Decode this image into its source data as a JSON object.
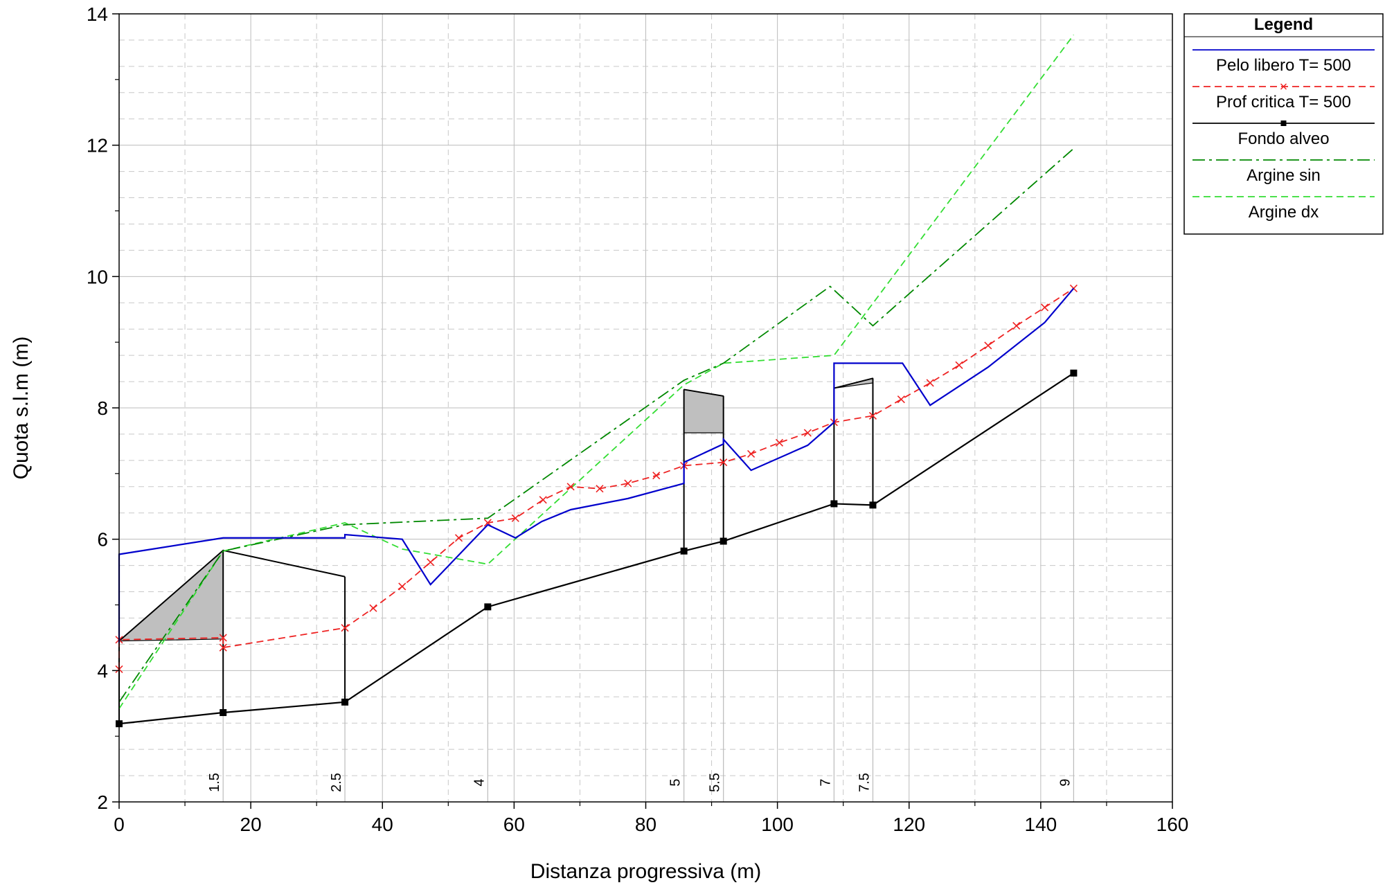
{
  "chart_data": {
    "type": "line",
    "title": "",
    "xlabel": "Distanza progressiva (m)",
    "ylabel": "Quota s.l.m (m)",
    "xlim": [
      0,
      160
    ],
    "ylim": [
      2,
      14
    ],
    "xticks": [
      0,
      20,
      40,
      60,
      80,
      100,
      120,
      140,
      160
    ],
    "yticks": [
      2,
      4,
      6,
      8,
      10,
      12,
      14
    ],
    "xtick_labels": [
      "0",
      "20",
      "40",
      "60",
      "80",
      "100",
      "120",
      "140",
      "160"
    ],
    "ytick_labels": [
      "2",
      "4",
      "6",
      "8",
      "10",
      "12",
      "14"
    ],
    "grid": true,
    "legend": {
      "title": "Legend",
      "placement": "top-right outside",
      "entries": [
        {
          "label": "Pelo libero  T= 500",
          "series": "pelo_libero"
        },
        {
          "label": "Prof critica  T= 500",
          "series": "prof_critica"
        },
        {
          "label": "Fondo alveo",
          "series": "fondo_alveo"
        },
        {
          "label": "Argine sin",
          "series": "argine_sin"
        },
        {
          "label": "Argine dx",
          "series": "argine_dx"
        }
      ]
    },
    "sections": [
      {
        "label": "1.5",
        "x": 15.8
      },
      {
        "label": "2.5",
        "x": 34.3
      },
      {
        "label": "4",
        "x": 56.0
      },
      {
        "label": "5",
        "x": 85.8
      },
      {
        "label": "5.5",
        "x": 91.8
      },
      {
        "label": "7",
        "x": 108.6
      },
      {
        "label": "7.5",
        "x": 114.5
      },
      {
        "label": "9",
        "x": 145.0
      }
    ],
    "series": [
      {
        "key": "pelo_libero",
        "name": "Pelo libero  T= 500",
        "color": "#0000cc",
        "style": "solid",
        "marker": "none",
        "x": [
          0,
          0,
          15.8,
          34.3,
          34.3,
          43,
          47.3,
          56.0,
          60.2,
          64.2,
          68.6,
          77.3,
          85.8,
          85.8,
          91.8,
          91.8,
          96.0,
          104.6,
          108.6,
          108.6,
          119.0,
          123.2,
          132.0,
          140.6,
          145.0
        ],
        "y": [
          4.42,
          5.77,
          6.02,
          6.02,
          6.07,
          6.0,
          5.31,
          6.22,
          6.02,
          6.27,
          6.45,
          6.62,
          6.85,
          7.17,
          7.45,
          7.52,
          7.05,
          7.43,
          7.78,
          8.68,
          8.68,
          8.04,
          8.62,
          9.3,
          9.82
        ]
      },
      {
        "key": "prof_critica",
        "name": "Prof critica  T= 500",
        "color": "#ee2222",
        "style": "dashed",
        "marker": "x",
        "x": [
          0,
          0,
          15.8,
          15.8,
          34.3,
          38.6,
          43.0,
          47.3,
          51.6,
          56.0,
          60.2,
          64.4,
          68.6,
          73.0,
          77.3,
          81.6,
          85.8,
          91.8,
          96.0,
          100.3,
          104.6,
          108.6,
          114.5,
          118.8,
          123.2,
          127.6,
          132.0,
          136.3,
          140.6,
          145.0
        ],
        "y": [
          4.02,
          4.47,
          4.5,
          4.35,
          4.65,
          4.95,
          5.28,
          5.65,
          6.02,
          6.25,
          6.32,
          6.6,
          6.8,
          6.77,
          6.85,
          6.97,
          7.12,
          7.17,
          7.3,
          7.47,
          7.62,
          7.78,
          7.88,
          8.13,
          8.38,
          8.65,
          8.95,
          9.25,
          9.53,
          9.82
        ],
        "markers_x": [
          0,
          0,
          15.8,
          15.8,
          34.3,
          38.6,
          43.0,
          47.3,
          51.6,
          56.0,
          60.2,
          64.4,
          68.6,
          73.0,
          77.3,
          81.6,
          85.8,
          91.8,
          96.0,
          100.3,
          104.6,
          108.6,
          114.5,
          118.8,
          123.2,
          127.6,
          132.0,
          136.3,
          140.6,
          145.0
        ]
      },
      {
        "key": "fondo_alveo",
        "name": "Fondo alveo",
        "color": "#000000",
        "style": "solid",
        "marker": "square",
        "x": [
          0,
          15.8,
          34.3,
          56.0,
          85.8,
          91.8,
          108.6,
          114.5,
          145.0
        ],
        "y": [
          3.19,
          3.36,
          3.52,
          4.97,
          5.82,
          5.97,
          6.54,
          6.52,
          8.53
        ]
      },
      {
        "key": "argine_sin",
        "name": "Argine sin",
        "color": "#008800",
        "style": "dashdot",
        "marker": "none",
        "x": [
          0,
          15.8,
          34.3,
          56.0,
          85.8,
          91.8,
          108.0,
          114.5,
          145.0
        ],
        "y": [
          3.52,
          5.82,
          6.22,
          6.32,
          8.42,
          8.68,
          9.85,
          9.25,
          11.95
        ]
      },
      {
        "key": "argine_dx",
        "name": "Argine dx",
        "color": "#33dd33",
        "style": "dashed",
        "marker": "none",
        "x": [
          0,
          15.8,
          34.3,
          43.0,
          56.0,
          85.8,
          91.8,
          108.6,
          145.0
        ],
        "y": [
          3.42,
          5.82,
          6.25,
          5.85,
          5.62,
          8.35,
          8.68,
          8.8,
          13.68
        ]
      }
    ],
    "structures": [
      {
        "name": "ponte-1",
        "deck_bottom": [
          [
            0,
            4.45
          ],
          [
            15.8,
            4.48
          ]
        ],
        "deck_top": [
          [
            0,
            4.45
          ],
          [
            15.8,
            5.83
          ],
          [
            34.3,
            5.43
          ]
        ],
        "piers": [
          [
            0,
            3.19,
            5.77
          ],
          [
            15.8,
            3.36,
            5.83
          ],
          [
            34.3,
            3.52,
            5.43
          ]
        ]
      },
      {
        "name": "ponte-2",
        "deck_bottom": [
          [
            85.8,
            7.62
          ],
          [
            91.8,
            7.62
          ]
        ],
        "deck_top": [
          [
            85.8,
            8.28
          ],
          [
            91.8,
            8.18
          ]
        ],
        "piers": [
          [
            85.8,
            5.82,
            8.28
          ],
          [
            91.8,
            5.97,
            8.18
          ]
        ]
      },
      {
        "name": "ponte-3",
        "deck_bottom": [
          [
            108.6,
            8.3
          ],
          [
            114.5,
            8.38
          ]
        ],
        "deck_top": [
          [
            108.6,
            8.3
          ],
          [
            114.5,
            8.45
          ]
        ],
        "piers": [
          [
            108.6,
            6.54,
            8.3
          ],
          [
            114.5,
            6.52,
            8.45
          ]
        ]
      }
    ]
  }
}
